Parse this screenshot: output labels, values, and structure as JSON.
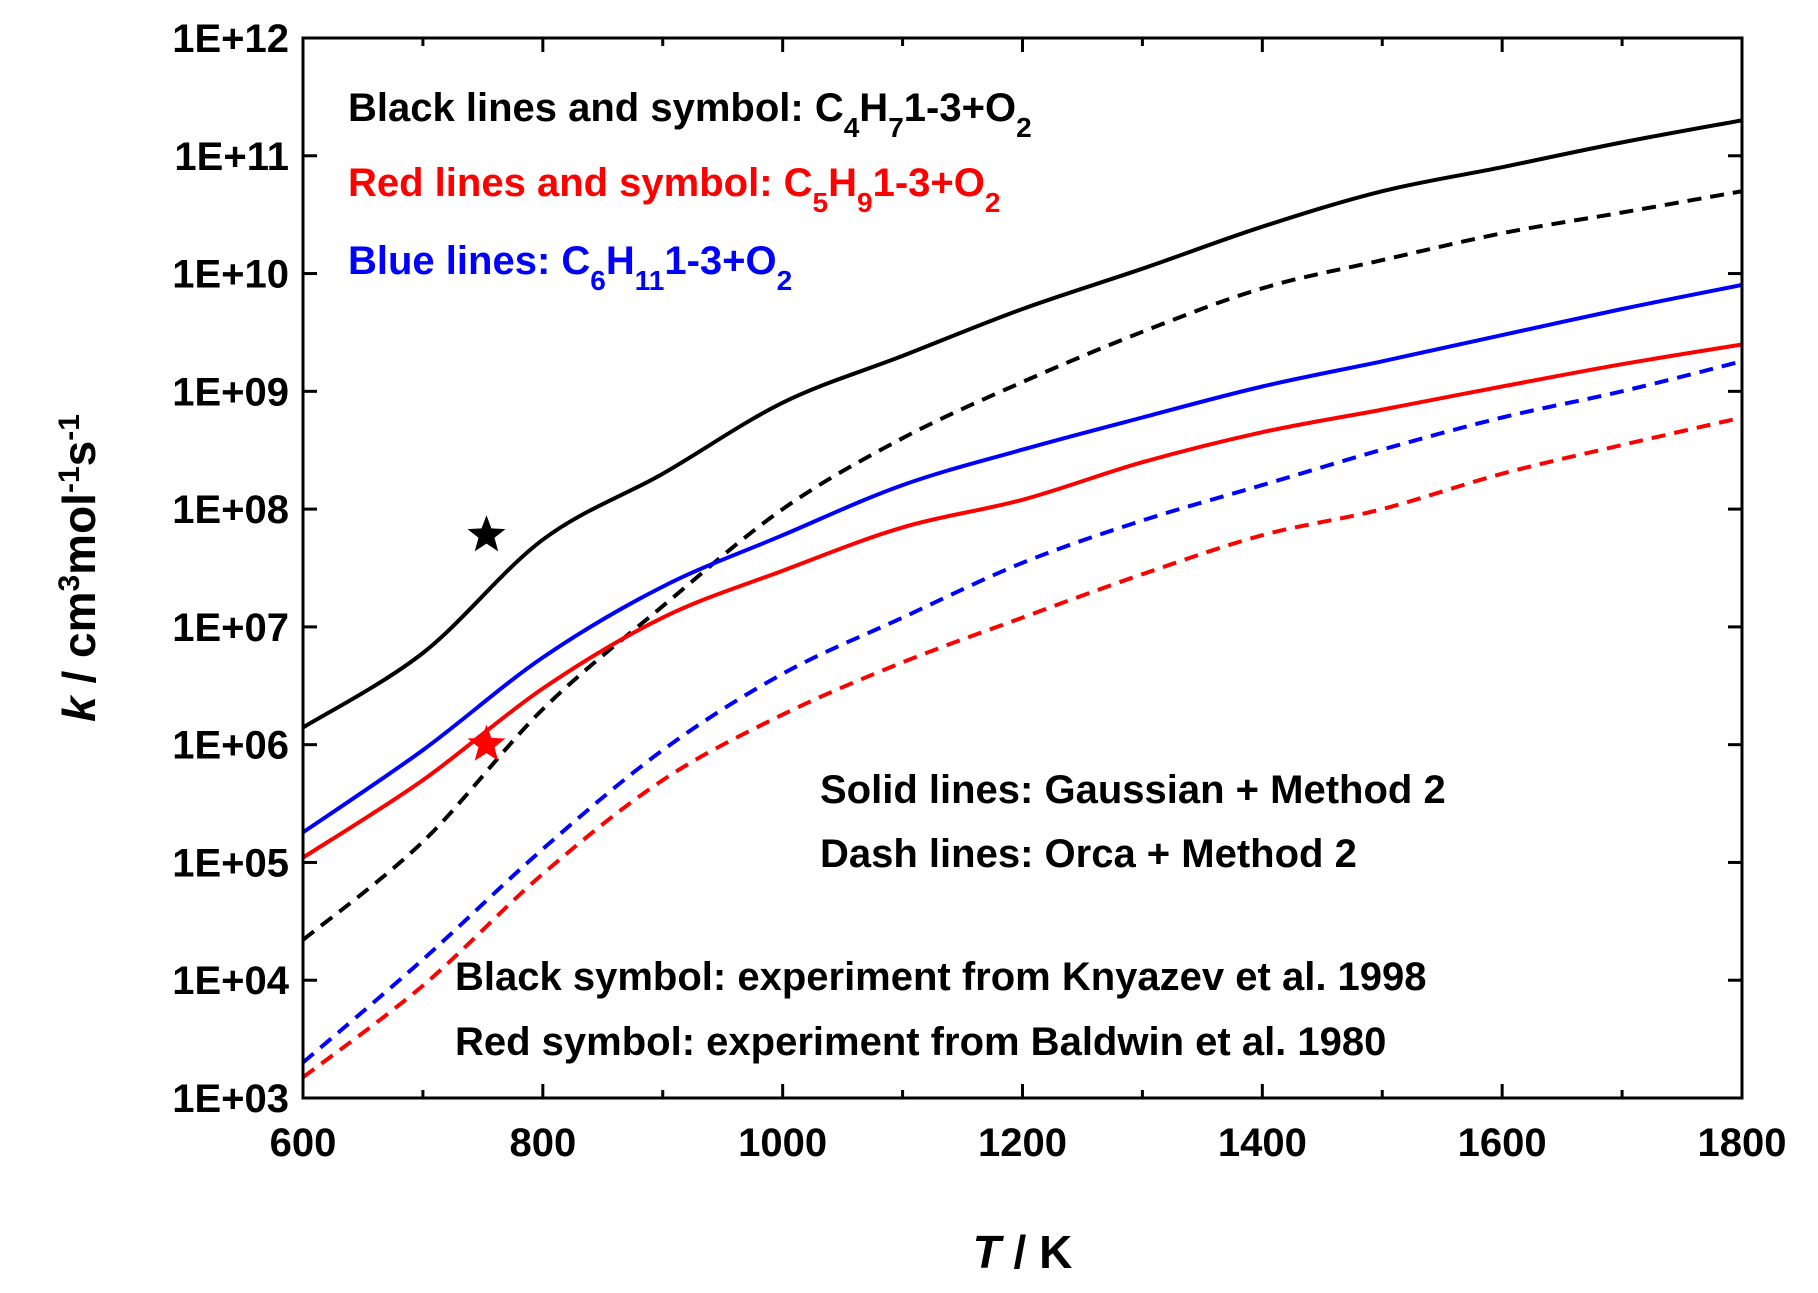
{
  "chart_data": {
    "type": "line",
    "title": "",
    "xlabel": {
      "symbol": "T",
      "unit": " / K"
    },
    "ylabel": {
      "symbol": "k",
      "unit_parts": [
        " / cm",
        "3",
        "mol",
        "-1",
        "s",
        "-1"
      ]
    },
    "xlim": [
      600,
      1800
    ],
    "ylim": [
      1000,
      1000000000000
    ],
    "yscale": "log",
    "grid": false,
    "x_ticks": [
      600,
      800,
      1000,
      1200,
      1400,
      1600,
      1800
    ],
    "x_tick_labels": [
      "600",
      "800",
      "1000",
      "1200",
      "1400",
      "1600",
      "1800"
    ],
    "y_ticks": [
      1000,
      10000,
      100000,
      1000000,
      10000000,
      100000000,
      1000000000,
      10000000000,
      100000000000,
      1000000000000
    ],
    "y_tick_labels": [
      "1E+03",
      "1E+04",
      "1E+05",
      "1E+06",
      "1E+07",
      "1E+08",
      "1E+09",
      "1E+10",
      "1E+11",
      "1E+12"
    ],
    "series": [
      {
        "name": "C4H7 1-3+O2 (Gaussian + Method 2)",
        "color": "#000000",
        "style": "solid",
        "x": [
          600,
          700,
          800,
          900,
          1000,
          1100,
          1200,
          1300,
          1400,
          1500,
          1600,
          1700,
          1800
        ],
        "y": [
          1400000,
          6000000,
          55000000,
          200000000,
          800000000,
          2000000000,
          5000000000,
          11000000000,
          25000000000,
          50000000000,
          80000000000,
          130000000000,
          200000000000
        ]
      },
      {
        "name": "C4H7 1-3+O2 (Orca + Method 2)",
        "color": "#000000",
        "style": "dash",
        "x": [
          600,
          700,
          800,
          900,
          1000,
          1100,
          1200,
          1300,
          1400,
          1500,
          1600,
          1700,
          1800
        ],
        "y": [
          22000,
          150000,
          2000000,
          15000000,
          100000000,
          400000000,
          1200000000,
          3200000000,
          7500000000,
          13000000000,
          22000000000,
          33000000000,
          50000000000
        ]
      },
      {
        "name": "C5H9 1-3+O2 (Gaussian + Method 2)",
        "color": "#ff0000",
        "style": "solid",
        "x": [
          600,
          700,
          800,
          900,
          1000,
          1100,
          1200,
          1300,
          1400,
          1500,
          1600,
          1700,
          1800
        ],
        "y": [
          110000,
          500000,
          3000000,
          12000000,
          30000000,
          70000000,
          120000000,
          250000000,
          450000000,
          700000000,
          1100000000,
          1700000000,
          2500000000
        ]
      },
      {
        "name": "C5H9 1-3+O2 (Orca + Method 2)",
        "color": "#ff0000",
        "style": "dash",
        "x": [
          600,
          700,
          800,
          900,
          1000,
          1100,
          1200,
          1300,
          1400,
          1500,
          1600,
          1700,
          1800
        ],
        "y": [
          1500,
          9000,
          80000,
          500000,
          1800000,
          5000000,
          12000000,
          28000000,
          60000000,
          100000000,
          200000000,
          350000000,
          600000000
        ]
      },
      {
        "name": "C6H11 1-3+O2 (Gaussian + Method 2)",
        "color": "#0000ff",
        "style": "solid",
        "x": [
          600,
          700,
          800,
          900,
          1000,
          1100,
          1200,
          1300,
          1400,
          1500,
          1600,
          1700,
          1800
        ],
        "y": [
          180000,
          900000,
          5500000,
          22000000,
          60000000,
          160000000,
          320000000,
          600000000,
          1100000000,
          1800000000,
          3000000000,
          5000000000,
          8000000000
        ]
      },
      {
        "name": "C6H11 1-3+O2 (Orca + Method 2)",
        "color": "#0000ff",
        "style": "dash",
        "x": [
          600,
          700,
          800,
          900,
          1000,
          1100,
          1200,
          1300,
          1400,
          1500,
          1600,
          1700,
          1800
        ],
        "y": [
          2000,
          15000,
          130000,
          900000,
          4000000,
          12000000,
          35000000,
          80000000,
          160000000,
          320000000,
          600000000,
          1000000000,
          1800000000
        ]
      }
    ],
    "points": [
      {
        "name": "Black symbol: experiment from Knyazev et al. 1998",
        "marker": "star",
        "color": "#000000",
        "x": 753,
        "y": 60000000
      },
      {
        "name": "Red symbol: experiment from Baldwin et al. 1980",
        "marker": "star",
        "color": "#ff0000",
        "x": 753,
        "y": 1000000
      }
    ],
    "legend": [
      {
        "color": "#000000",
        "parts": [
          {
            "text": "Black lines and symbol: ",
            "sub": false
          },
          {
            "text": "C",
            "sub": false
          },
          {
            "text": "4",
            "sub": true
          },
          {
            "text": "H",
            "sub": false
          },
          {
            "text": "7",
            "sub": true
          },
          {
            "text": "1-3+O",
            "sub": false
          },
          {
            "text": "2",
            "sub": true
          }
        ]
      },
      {
        "color": "#ff0000",
        "parts": [
          {
            "text": "Red lines and symbol: ",
            "sub": false
          },
          {
            "text": "C",
            "sub": false
          },
          {
            "text": "5",
            "sub": true
          },
          {
            "text": "H",
            "sub": false
          },
          {
            "text": "9",
            "sub": true
          },
          {
            "text": "1-3+O",
            "sub": false
          },
          {
            "text": "2",
            "sub": true
          }
        ]
      },
      {
        "color": "#0000ff",
        "parts": [
          {
            "text": "Blue lines: ",
            "sub": false
          },
          {
            "text": "C",
            "sub": false
          },
          {
            "text": "6",
            "sub": true
          },
          {
            "text": "H",
            "sub": false
          },
          {
            "text": "11",
            "sub": true
          },
          {
            "text": "1-3+O",
            "sub": false
          },
          {
            "text": "2",
            "sub": true
          }
        ]
      }
    ],
    "annotations": [
      {
        "text": "Solid lines: Gaussian + Method 2",
        "color": "#000000"
      },
      {
        "text": "Dash lines: Orca + Method 2",
        "color": "#000000"
      },
      {
        "text": "Black symbol: experiment from Knyazev et al. 1998",
        "color": "#000000"
      },
      {
        "text": "Red symbol: experiment from Baldwin et al. 1980",
        "color": "#ff0000"
      }
    ]
  }
}
